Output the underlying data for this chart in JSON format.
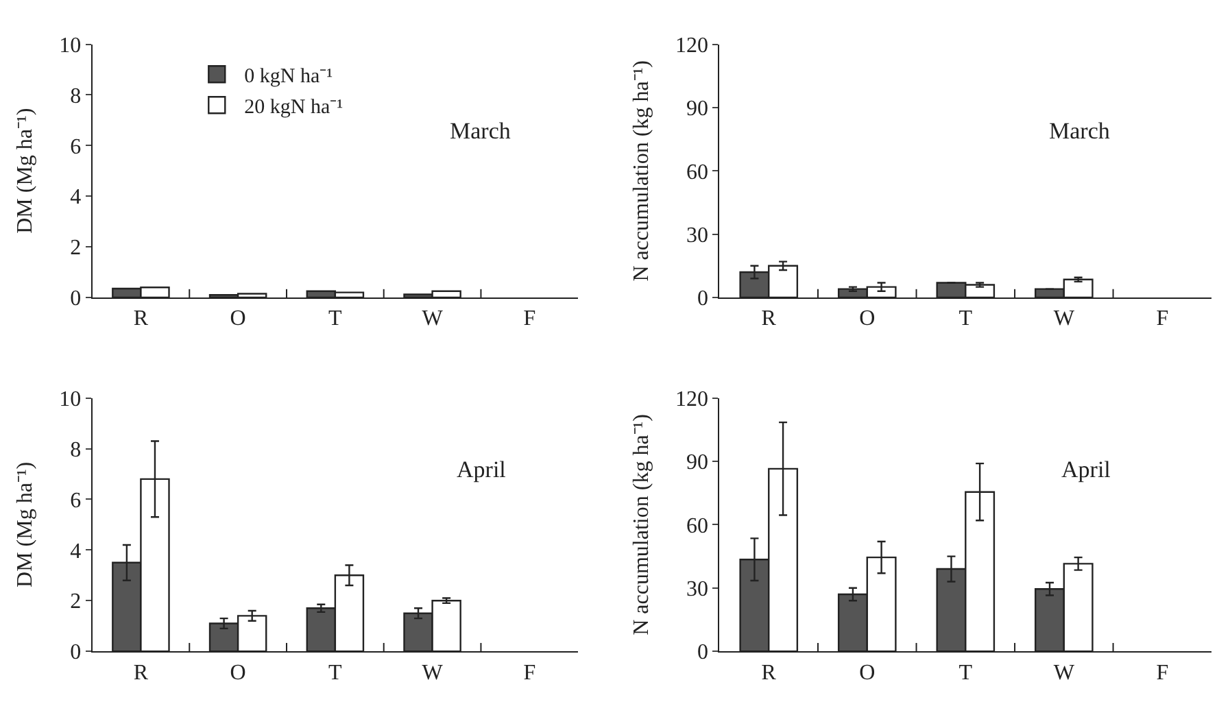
{
  "chart_data": [
    {
      "type": "bar",
      "categories": [
        "R",
        "O",
        "T",
        "W",
        "F"
      ],
      "ylabel": "DM (Mg ha⁻¹)",
      "annotations": [
        "March"
      ],
      "ylim": [
        0,
        10
      ],
      "yticks": [
        0,
        2,
        4,
        6,
        8,
        10
      ],
      "legend": "top left",
      "grid": false,
      "series": [
        {
          "name": "0 kgN ha⁻¹",
          "color": "#555555",
          "values": [
            0.35,
            0.1,
            0.25,
            0.12,
            null
          ]
        },
        {
          "name": "20 kgN ha⁻¹",
          "color": "#ffffff",
          "values": [
            0.4,
            0.15,
            0.2,
            0.25,
            null
          ]
        }
      ]
    },
    {
      "type": "bar",
      "categories": [
        "R",
        "O",
        "T",
        "W",
        "F"
      ],
      "ylabel": "N accumulation (kg ha⁻¹)",
      "annotations": [
        "March"
      ],
      "ylim": [
        0,
        120
      ],
      "yticks": [
        0,
        30,
        60,
        90,
        120
      ],
      "grid": false,
      "series": [
        {
          "color": "#555555",
          "values": [
            12,
            4,
            7,
            4,
            null
          ],
          "errors": [
            3,
            1,
            null,
            null,
            null
          ]
        },
        {
          "color": "#ffffff",
          "values": [
            15,
            5,
            6,
            8.5,
            null
          ],
          "errors": [
            2,
            2,
            1,
            1,
            null
          ]
        }
      ]
    },
    {
      "type": "bar",
      "categories": [
        "R",
        "O",
        "T",
        "W",
        "F"
      ],
      "ylabel": "DM (Mg ha⁻¹)",
      "annotations": [
        "April"
      ],
      "ylim": [
        0,
        10
      ],
      "yticks": [
        0,
        2,
        4,
        6,
        8,
        10
      ],
      "grid": false,
      "series": [
        {
          "color": "#555555",
          "values": [
            3.5,
            1.1,
            1.7,
            1.5,
            null
          ],
          "errors": [
            0.7,
            0.2,
            0.15,
            0.2,
            null
          ]
        },
        {
          "color": "#ffffff",
          "values": [
            6.8,
            1.4,
            3.0,
            2.0,
            null
          ],
          "errors": [
            1.5,
            0.2,
            0.4,
            0.1,
            null
          ]
        }
      ]
    },
    {
      "type": "bar",
      "categories": [
        "R",
        "O",
        "T",
        "W",
        "F"
      ],
      "ylabel": "N accumulation (kg ha⁻¹)",
      "annotations": [
        "April"
      ],
      "ylim": [
        0,
        120
      ],
      "yticks": [
        0,
        30,
        60,
        90,
        120
      ],
      "grid": false,
      "series": [
        {
          "color": "#555555",
          "values": [
            43.5,
            27,
            39,
            29.5,
            null
          ],
          "errors": [
            10,
            3,
            6,
            3,
            null
          ]
        },
        {
          "color": "#ffffff",
          "values": [
            86.5,
            44.5,
            75.5,
            41.5,
            null
          ],
          "errors": [
            22,
            7.5,
            13.5,
            3,
            null
          ]
        }
      ]
    }
  ]
}
